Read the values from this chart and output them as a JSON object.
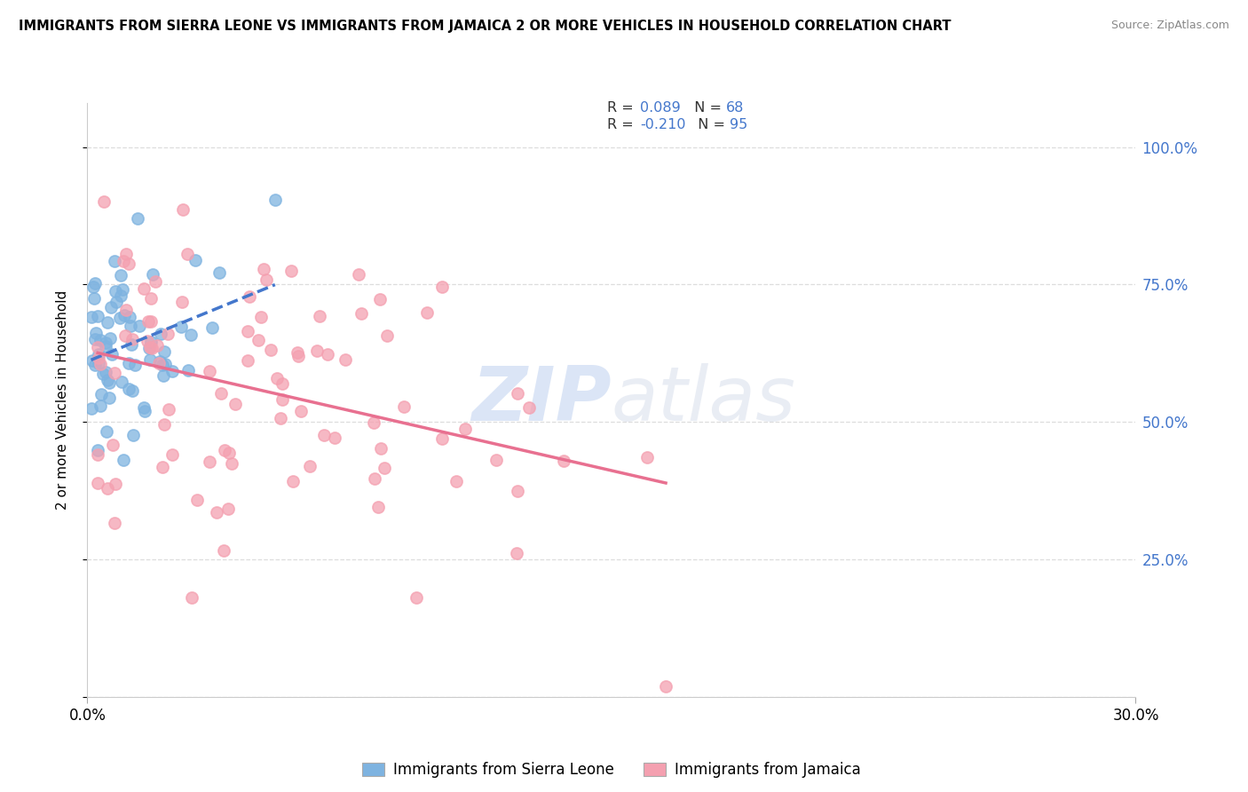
{
  "title": "IMMIGRANTS FROM SIERRA LEONE VS IMMIGRANTS FROM JAMAICA 2 OR MORE VEHICLES IN HOUSEHOLD CORRELATION CHART",
  "source": "Source: ZipAtlas.com",
  "ylabel": "2 or more Vehicles in Household",
  "legend_label_sierra": "Immigrants from Sierra Leone",
  "legend_label_jamaica": "Immigrants from Jamaica",
  "R_sierra": 0.089,
  "N_sierra": 68,
  "R_jamaica": -0.21,
  "N_jamaica": 95,
  "xlim": [
    0.0,
    0.3
  ],
  "ylim": [
    0.0,
    1.08
  ],
  "color_sierra": "#7EB3E0",
  "color_jamaica": "#F4A0B0",
  "color_blue_text": "#4477CC",
  "background_color": "#ffffff"
}
